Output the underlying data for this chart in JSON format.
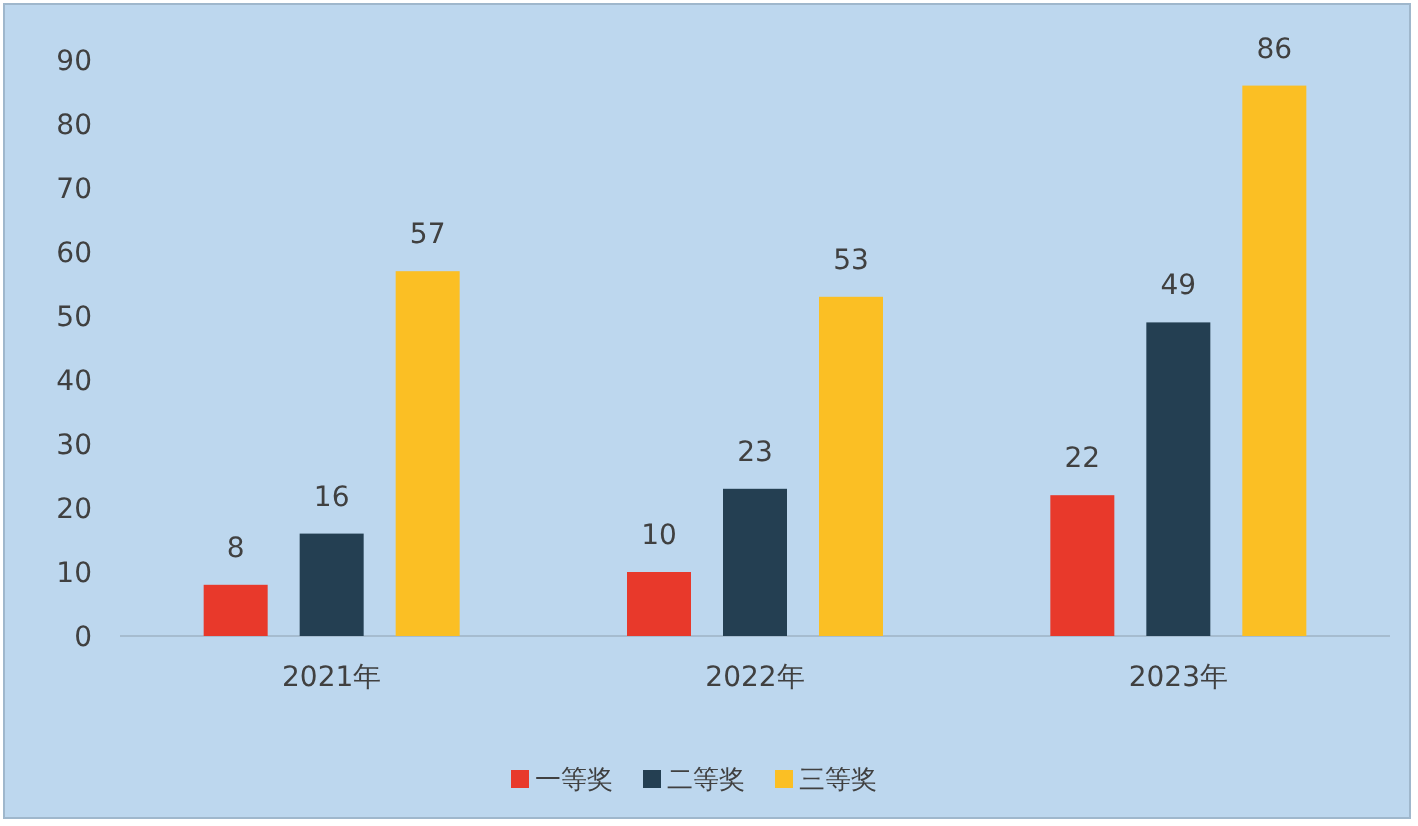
{
  "chart_data": {
    "type": "bar",
    "categories": [
      "2021年",
      "2022年",
      "2023年"
    ],
    "series": [
      {
        "name": "一等奖",
        "color": "#e8392b",
        "values": [
          8,
          10,
          22
        ]
      },
      {
        "name": "二等奖",
        "color": "#243f52",
        "values": [
          16,
          23,
          49
        ]
      },
      {
        "name": "三等奖",
        "color": "#fbbf24",
        "values": [
          57,
          53,
          86
        ]
      }
    ],
    "ylim": [
      0,
      90
    ],
    "yticks": [
      0,
      10,
      20,
      30,
      40,
      50,
      60,
      70,
      80,
      90
    ],
    "data_labels": true,
    "legend": "bottom",
    "grid": false
  }
}
